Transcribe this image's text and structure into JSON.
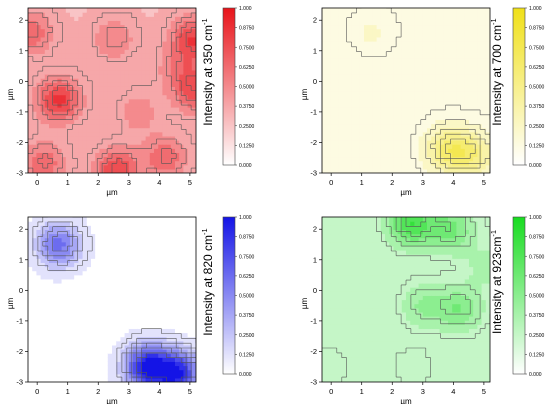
{
  "chart_data": [
    {
      "type": "heatmap",
      "xlabel": "µm",
      "ylabel": "µm",
      "xlim": [
        -0.3,
        5.2
      ],
      "ylim": [
        -3,
        2.4
      ],
      "xticks": [
        "0",
        "1",
        "2",
        "3",
        "4",
        "5"
      ],
      "yticks": [
        "2",
        "1",
        "0",
        "-1",
        "-2",
        "-3"
      ],
      "colorbar_label": "Intensity at 350 cm",
      "colorbar_sup": "-1",
      "colorbar_ticks": [
        "1.000",
        "0.8750",
        "0.7500",
        "0.6250",
        "0.5000",
        "0.3750",
        "0.2500",
        "0.1250",
        "0.000"
      ],
      "colorbar_range": [
        0,
        1
      ],
      "color": "#e8141a",
      "hotspots": [
        {
          "x": 0.7,
          "y": -0.6,
          "value": 0.85
        },
        {
          "x": 2.6,
          "y": -2.9,
          "value": 0.8
        },
        {
          "x": 5.1,
          "y": 1.4,
          "value": 0.8
        },
        {
          "x": 5.2,
          "y": -0.3,
          "value": 0.75
        },
        {
          "x": -0.2,
          "y": 1.6,
          "value": 0.65
        },
        {
          "x": 0.2,
          "y": -2.7,
          "value": 0.65
        },
        {
          "x": 4.2,
          "y": -2.5,
          "value": 0.65
        },
        {
          "x": 2.5,
          "y": 1.4,
          "value": 0.55
        },
        {
          "x": 3.3,
          "y": -1.0,
          "value": 0.5
        },
        {
          "x": 4.6,
          "y": 0.4,
          "value": 0.5
        }
      ],
      "background_level": 0.3
    },
    {
      "type": "heatmap",
      "xlabel": "µm",
      "ylabel": "µm",
      "xlim": [
        -0.3,
        5.2
      ],
      "ylim": [
        -3,
        2.4
      ],
      "xticks": [
        "0",
        "1",
        "2",
        "3",
        "4",
        "5"
      ],
      "yticks": [
        "2",
        "1",
        "0",
        "-1",
        "-2",
        "-3"
      ],
      "colorbar_label": "Intensity at 700 cm",
      "colorbar_sup": "-1",
      "colorbar_ticks": [
        "1.000",
        "0.8750",
        "0.7500",
        "0.6250",
        "0.5000",
        "0.3750",
        "0.2500",
        "0.1250",
        "0.000"
      ],
      "colorbar_range": [
        0,
        1
      ],
      "color": "#f0e018",
      "hotspots": [
        {
          "x": 3.8,
          "y": -2.2,
          "value": 0.55
        },
        {
          "x": 4.6,
          "y": -2.4,
          "value": 0.5
        },
        {
          "x": 1.3,
          "y": 1.6,
          "value": 0.2
        }
      ],
      "background_level": 0.1
    },
    {
      "type": "heatmap",
      "xlabel": "µm",
      "ylabel": "µm",
      "xlim": [
        -0.3,
        5.2
      ],
      "ylim": [
        -3,
        2.4
      ],
      "xticks": [
        "0",
        "1",
        "2",
        "3",
        "4",
        "5"
      ],
      "yticks": [
        "2",
        "1",
        "0",
        "-1",
        "-2",
        "-3"
      ],
      "colorbar_label": "Intensity at 820 cm",
      "colorbar_sup": "-1",
      "colorbar_ticks": [
        "1.000",
        "0.8750",
        "0.7500",
        "0.6250",
        "0.5000",
        "0.3750",
        "0.2500",
        "0.1250",
        "0.000"
      ],
      "colorbar_range": [
        0,
        1
      ],
      "color": "#1414e6",
      "hotspots": [
        {
          "x": 3.6,
          "y": -2.5,
          "value": 0.95
        },
        {
          "x": 4.6,
          "y": -2.7,
          "value": 0.9
        },
        {
          "x": 0.7,
          "y": 1.5,
          "value": 0.6
        }
      ],
      "background_level": 0.02
    },
    {
      "type": "heatmap",
      "xlabel": "µm",
      "ylabel": "µm",
      "xlim": [
        -0.3,
        5.2
      ],
      "ylim": [
        -3,
        2.4
      ],
      "xticks": [
        "0",
        "1",
        "2",
        "3",
        "4",
        "5"
      ],
      "yticks": [
        "2",
        "1",
        "0",
        "-1",
        "-2",
        "-3"
      ],
      "colorbar_label": "Intensity at 923cm",
      "colorbar_sup": "-1",
      "colorbar_ticks": [
        "1.000",
        "0.8750",
        "0.7500",
        "0.6250",
        "0.5000",
        "0.3750",
        "0.2500",
        "0.1250",
        "0.000"
      ],
      "colorbar_range": [
        0,
        1
      ],
      "color": "#18dc20",
      "hotspots": [
        {
          "x": 2.6,
          "y": 2.2,
          "value": 0.8
        },
        {
          "x": 3.9,
          "y": 2.0,
          "value": 0.6
        },
        {
          "x": 4.2,
          "y": -0.6,
          "value": 0.55
        },
        {
          "x": 3.0,
          "y": -0.5,
          "value": 0.45
        },
        {
          "x": 5.1,
          "y": 0.8,
          "value": 0.35
        },
        {
          "x": 2.6,
          "y": -2.6,
          "value": 0.3
        },
        {
          "x": -0.2,
          "y": -2.6,
          "value": 0.3
        }
      ],
      "background_level": 0.2
    }
  ]
}
